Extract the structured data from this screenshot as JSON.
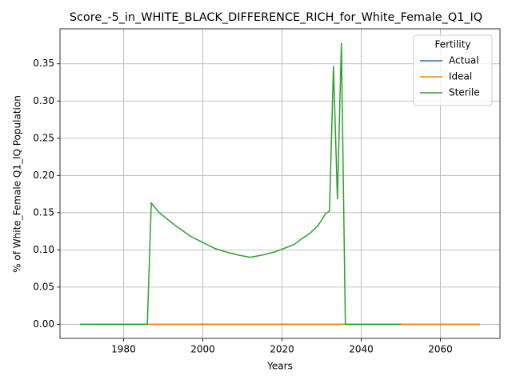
{
  "chart_data": {
    "type": "line",
    "title": "Score_-5_in_WHITE_BLACK_DIFFERENCE_RICH_for_White_Female_Q1_IQ",
    "xlabel": "Years",
    "ylabel": "% of White_Female Q1_IQ Population",
    "legend_title": "Fertility",
    "legend": "upper right",
    "grid": true,
    "xlim": [
      1963.95,
      2075.05
    ],
    "xticks": [
      1980,
      2000,
      2020,
      2040,
      2060
    ],
    "ylim": [
      -0.0189,
      0.397
    ],
    "yticks": [
      {
        "value": 0,
        "label": "0.00"
      },
      {
        "value": 0.05,
        "label": "0.05"
      },
      {
        "value": 0.1,
        "label": "0.10"
      },
      {
        "value": 0.15,
        "label": "0.15"
      },
      {
        "value": 0.2,
        "label": "0.20"
      },
      {
        "value": 0.25,
        "label": "0.25"
      },
      {
        "value": 0.3,
        "label": "0.30"
      },
      {
        "value": 0.35,
        "label": "0.35"
      }
    ],
    "series": [
      {
        "name": "Actual",
        "color": "#1f77b4",
        "x": [
          1969,
          2070
        ],
        "values": [
          0,
          0
        ]
      },
      {
        "name": "Ideal",
        "color": "#ff7f0e",
        "x": [
          1969,
          2070
        ],
        "values": [
          0,
          0
        ]
      },
      {
        "name": "Sterile",
        "color": "#2ca02c",
        "x": [
          1969,
          1986,
          1987,
          1989,
          1993,
          1997,
          2000,
          2003,
          2006,
          2009,
          2012,
          2015,
          2018,
          2020,
          2023,
          2025,
          2027,
          2029,
          2030,
          2031,
          2032,
          2033,
          2034,
          2035,
          2036,
          2050
        ],
        "values": [
          0,
          0,
          0.163,
          0.15,
          0.133,
          0.118,
          0.11,
          0.102,
          0.097,
          0.093,
          0.09,
          0.093,
          0.097,
          0.101,
          0.107,
          0.115,
          0.122,
          0.132,
          0.14,
          0.149,
          0.152,
          0.347,
          0.168,
          0.378,
          0,
          0
        ]
      }
    ]
  }
}
